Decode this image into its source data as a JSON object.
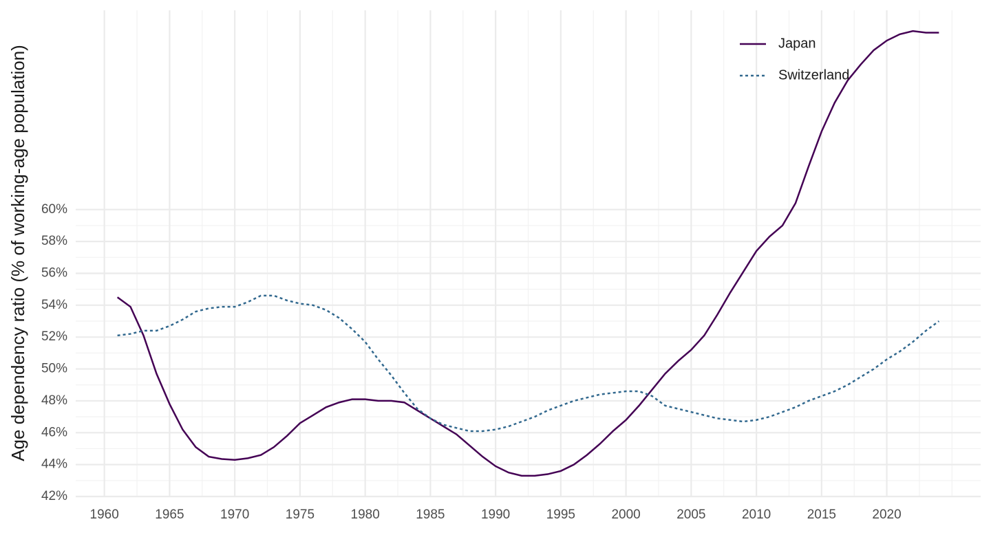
{
  "chart_data": {
    "type": "line",
    "y_label": "Age dependency ratio (% of working-age population)",
    "x": [
      1961,
      1962,
      1963,
      1964,
      1965,
      1966,
      1967,
      1968,
      1969,
      1970,
      1971,
      1972,
      1973,
      1974,
      1975,
      1976,
      1977,
      1978,
      1979,
      1980,
      1981,
      1982,
      1983,
      1984,
      1985,
      1986,
      1987,
      1988,
      1989,
      1990,
      1991,
      1992,
      1993,
      1994,
      1995,
      1996,
      1997,
      1998,
      1999,
      2000,
      2001,
      2002,
      2003,
      2004,
      2005,
      2006,
      2007,
      2008,
      2009,
      2010,
      2011,
      2012,
      2013,
      2014,
      2015,
      2016,
      2017,
      2018,
      2019,
      2020,
      2021,
      2022,
      2023,
      2024
    ],
    "series": [
      {
        "name": "Japan",
        "color": "#440154",
        "linetype": "solid",
        "values": [
          54.5,
          53.9,
          52.1,
          49.7,
          47.8,
          46.2,
          45.1,
          44.5,
          44.35,
          44.3,
          44.4,
          44.6,
          45.1,
          45.8,
          46.6,
          47.1,
          47.6,
          47.9,
          48.1,
          48.1,
          48.0,
          48.0,
          47.9,
          47.4,
          46.9,
          46.4,
          45.9,
          45.2,
          44.5,
          43.9,
          43.5,
          43.3,
          43.3,
          43.4,
          43.6,
          44.0,
          44.6,
          45.3,
          46.1,
          46.8,
          47.7,
          48.7,
          49.7,
          50.5,
          51.2,
          52.1,
          53.4,
          54.8,
          56.1,
          57.4,
          58.3,
          59.0,
          60.4,
          62.7,
          64.9,
          66.7,
          68.1,
          69.1,
          70.0,
          70.6,
          71.0,
          71.2,
          71.1,
          71.1
        ]
      },
      {
        "name": "Switzerland",
        "color": "#31688e",
        "linetype": "dotted",
        "values": [
          52.1,
          52.2,
          52.4,
          52.4,
          52.7,
          53.1,
          53.6,
          53.8,
          53.9,
          53.9,
          54.2,
          54.6,
          54.6,
          54.3,
          54.1,
          54.0,
          53.7,
          53.2,
          52.5,
          51.7,
          50.6,
          49.6,
          48.5,
          47.5,
          46.9,
          46.5,
          46.3,
          46.1,
          46.1,
          46.2,
          46.4,
          46.7,
          47.0,
          47.4,
          47.7,
          48.0,
          48.2,
          48.4,
          48.5,
          48.6,
          48.6,
          48.3,
          47.7,
          47.5,
          47.3,
          47.1,
          46.9,
          46.8,
          46.7,
          46.8,
          47.0,
          47.3,
          47.6,
          48.0,
          48.3,
          48.6,
          49.0,
          49.5,
          50.0,
          50.6,
          51.1,
          51.7,
          52.4,
          53.0
        ]
      }
    ],
    "xlim": [
      1957.8,
      2027.2
    ],
    "xticks": [
      1960,
      1965,
      1970,
      1975,
      1980,
      1985,
      1990,
      1995,
      2000,
      2005,
      2010,
      2015,
      2020
    ],
    "ylim": [
      42,
      72.5
    ],
    "yticks": [
      {
        "value": 42,
        "label": "42%"
      },
      {
        "value": 44,
        "label": "44%"
      },
      {
        "value": 46,
        "label": "46%"
      },
      {
        "value": 48,
        "label": "48%"
      },
      {
        "value": 50,
        "label": "50%"
      },
      {
        "value": 52,
        "label": "52%"
      },
      {
        "value": 54,
        "label": "54%"
      },
      {
        "value": 56,
        "label": "56%"
      },
      {
        "value": 58,
        "label": "58%"
      },
      {
        "value": 60,
        "label": "60%"
      }
    ],
    "grid": true,
    "legend": "top-right"
  }
}
